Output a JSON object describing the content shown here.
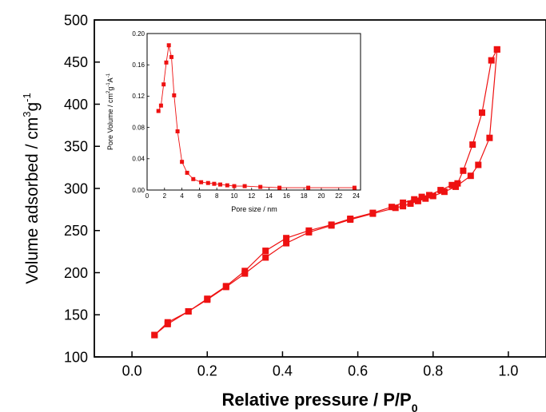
{
  "chart_data": [
    {
      "type": "line",
      "title": "",
      "xlabel": "Relative pressure / P/P",
      "xlabel_sub": "0",
      "ylabel": "Volume adsorbed / cm",
      "ylabel_sup1": "3",
      "ylabel_mid": "g",
      "ylabel_sup2": "-1",
      "xlim": [
        -0.1,
        1.1
      ],
      "ylim": [
        100,
        500
      ],
      "xticks": [
        0.0,
        0.2,
        0.4,
        0.6,
        0.8,
        1.0
      ],
      "xtick_labels": [
        "0.0",
        "0.2",
        "0.4",
        "0.6",
        "0.8",
        "1.0"
      ],
      "yticks": [
        100,
        150,
        200,
        250,
        300,
        350,
        400,
        450,
        500
      ],
      "ytick_labels": [
        "100",
        "150",
        "200",
        "250",
        "300",
        "350",
        "400",
        "450",
        "500"
      ],
      "grid": false,
      "series_color": "#ee1111",
      "series": [
        {
          "marker": "square",
          "x": [
            0.06,
            0.095,
            0.15,
            0.2,
            0.25,
            0.3,
            0.355,
            0.41,
            0.47,
            0.53,
            0.58,
            0.64,
            0.7,
            0.72,
            0.74,
            0.76,
            0.78,
            0.8,
            0.83,
            0.86,
            0.9,
            0.92,
            0.95,
            0.97
          ],
          "y": [
            126,
            139,
            154,
            168,
            183,
            199,
            218,
            235,
            248,
            256,
            263,
            270,
            277,
            279,
            282,
            285,
            288,
            291,
            296,
            302,
            315,
            328,
            360,
            465
          ]
        },
        {
          "marker": "square",
          "x": [
            0.97,
            0.955,
            0.93,
            0.905,
            0.88,
            0.865,
            0.85,
            0.82,
            0.79,
            0.77,
            0.75,
            0.72,
            0.69,
            0.64,
            0.58,
            0.53,
            0.47,
            0.41,
            0.355,
            0.3,
            0.25,
            0.2,
            0.15,
            0.095,
            0.06
          ],
          "y": [
            465,
            452,
            390,
            352,
            321,
            306,
            304,
            298,
            292,
            290,
            287,
            283,
            278,
            271,
            264,
            257,
            250,
            241,
            226,
            202,
            184,
            169,
            154,
            141,
            126
          ]
        }
      ]
    },
    {
      "type": "line",
      "title": "",
      "xlabel": "Pore size / nm",
      "ylabel": "Pore Volume / cm",
      "ylabel_sup1": "2",
      "ylabel_mid": "g",
      "ylabel_sup2": "-1",
      "ylabel_end": "A",
      "ylabel_sup3": "-1",
      "xlim": [
        0,
        24.5
      ],
      "ylim": [
        0,
        0.2
      ],
      "xticks": [
        0,
        2,
        4,
        6,
        8,
        10,
        12,
        14,
        16,
        18,
        20,
        22,
        24
      ],
      "xtick_labels": [
        "0",
        "2",
        "4",
        "6",
        "8",
        "10",
        "12",
        "14",
        "16",
        "18",
        "20",
        "22",
        "24"
      ],
      "yticks": [
        0.0,
        0.04,
        0.08,
        0.12,
        0.16,
        0.2
      ],
      "ytick_labels": [
        "0.00",
        "0.04",
        "0.08",
        "0.12",
        "0.16",
        "0.20"
      ],
      "grid": false,
      "series_color": "#ee1111",
      "series": [
        {
          "marker": "square",
          "x": [
            1.3,
            1.6,
            1.9,
            2.2,
            2.5,
            2.8,
            3.1,
            3.5,
            4.0,
            4.6,
            5.3,
            6.2,
            7.0,
            7.7,
            8.4,
            9.2,
            10.0,
            11.2,
            13.0,
            15.2,
            18.5,
            23.8
          ],
          "y": [
            0.101,
            0.108,
            0.135,
            0.163,
            0.185,
            0.17,
            0.121,
            0.075,
            0.036,
            0.022,
            0.014,
            0.01,
            0.009,
            0.008,
            0.007,
            0.006,
            0.005,
            0.005,
            0.004,
            0.003,
            0.003,
            0.003
          ]
        }
      ]
    }
  ]
}
